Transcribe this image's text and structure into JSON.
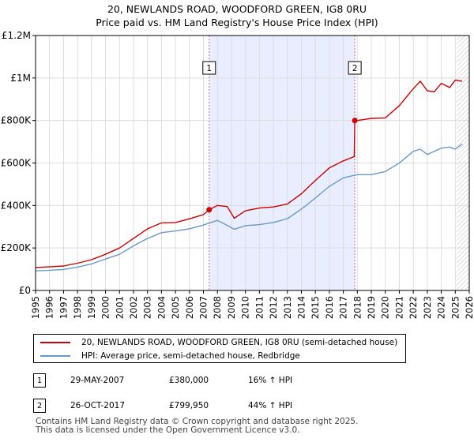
{
  "title_line1": "20, NEWLANDS ROAD, WOODFORD GREEN, IG8 0RU",
  "title_line2": "Price paid vs. HM Land Registry's House Price Index (HPI)",
  "colors": {
    "property": "#cc0000",
    "hpi": "#6699cc",
    "shade": "#e8eeff",
    "vline": "#e06666",
    "grid": "#dddddd"
  },
  "chart_data": {
    "type": "line",
    "title": "Price paid vs. HM Land Registry's House Price Index (HPI)",
    "xlabel": "",
    "ylabel": "",
    "xlim": [
      1995,
      2026
    ],
    "ylim": [
      0,
      1200000
    ],
    "y_ticks": [
      0,
      200000,
      400000,
      600000,
      800000,
      1000000,
      1200000
    ],
    "y_tick_labels": [
      "£0",
      "£200K",
      "£400K",
      "£600K",
      "£800K",
      "£1M",
      "£1.2M"
    ],
    "x_ticks": [
      1995,
      1996,
      1997,
      1998,
      1999,
      2000,
      2001,
      2002,
      2003,
      2004,
      2005,
      2006,
      2007,
      2008,
      2009,
      2010,
      2011,
      2012,
      2013,
      2014,
      2015,
      2016,
      2017,
      2018,
      2019,
      2020,
      2021,
      2022,
      2023,
      2024,
      2025,
      2026
    ],
    "x_tick_labels": [
      "1995",
      "1996",
      "1997",
      "1998",
      "1999",
      "2000",
      "2001",
      "2002",
      "2003",
      "2004",
      "2005",
      "2006",
      "2007",
      "2008",
      "2009",
      "2010",
      "2011",
      "2012",
      "2013",
      "2014",
      "2015",
      "2016",
      "2017",
      "2018",
      "2019",
      "2020",
      "2021",
      "2022",
      "2023",
      "2024",
      "2025",
      "2026"
    ],
    "shaded_period": [
      2007.41,
      2017.82
    ],
    "hatched_from": 2025.1,
    "series": [
      {
        "name": "20, NEWLANDS ROAD, WOODFORD GREEN, IG8 0RU (semi-detached house)",
        "color": "#cc0000",
        "x": [
          1995,
          1996,
          1997,
          1998,
          1999,
          2000,
          2001,
          2002,
          2003,
          2004,
          2005,
          2006,
          2007,
          2007.41,
          2008,
          2008.7,
          2009.2,
          2010,
          2011,
          2012,
          2013,
          2014,
          2015,
          2016,
          2017,
          2017.78,
          2017.82,
          2018,
          2019,
          2020,
          2021,
          2022,
          2022.5,
          2023,
          2023.5,
          2024,
          2024.6,
          2025,
          2025.5
        ],
        "y": [
          108000,
          111000,
          115000,
          128000,
          145000,
          170000,
          200000,
          245000,
          290000,
          318000,
          320000,
          337000,
          357000,
          380000,
          400000,
          395000,
          340000,
          375000,
          388000,
          393000,
          407000,
          455000,
          518000,
          577000,
          610000,
          630000,
          799950,
          800000,
          810000,
          812000,
          870000,
          950000,
          985000,
          940000,
          935000,
          975000,
          955000,
          990000,
          985000
        ]
      },
      {
        "name": "HPI: Average price, semi-detached house, Redbridge",
        "color": "#6699cc",
        "x": [
          1995,
          1996,
          1997,
          1998,
          1999,
          2000,
          2001,
          2002,
          2003,
          2004,
          2005,
          2006,
          2007,
          2008,
          2008.6,
          2009.2,
          2010,
          2011,
          2012,
          2013,
          2014,
          2015,
          2016,
          2017,
          2018,
          2019,
          2020,
          2021,
          2022,
          2022.5,
          2023,
          2023.5,
          2024,
          2024.6,
          2025,
          2025.5
        ],
        "y": [
          92000,
          95000,
          99000,
          110000,
          125000,
          148000,
          170000,
          210000,
          245000,
          272000,
          280000,
          290000,
          308000,
          330000,
          310000,
          288000,
          305000,
          310000,
          320000,
          338000,
          383000,
          435000,
          490000,
          530000,
          545000,
          545000,
          560000,
          600000,
          655000,
          665000,
          640000,
          655000,
          670000,
          675000,
          665000,
          690000
        ]
      }
    ],
    "sales": [
      {
        "label": "1",
        "x": 2007.41,
        "y": 380000
      },
      {
        "label": "2",
        "x": 2017.82,
        "y": 799950
      }
    ]
  },
  "legend": {
    "property": "20, NEWLANDS ROAD, WOODFORD GREEN, IG8 0RU (semi-detached house)",
    "hpi": "HPI: Average price, semi-detached house, Redbridge"
  },
  "sales_table": [
    {
      "num": "1",
      "date": "29-MAY-2007",
      "price": "£380,000",
      "hpi": "16% ↑ HPI"
    },
    {
      "num": "2",
      "date": "26-OCT-2017",
      "price": "£799,950",
      "hpi": "44% ↑ HPI"
    }
  ],
  "footer_line1": "Contains HM Land Registry data © Crown copyright and database right 2025.",
  "footer_line2": "This data is licensed under the Open Government Licence v3.0."
}
